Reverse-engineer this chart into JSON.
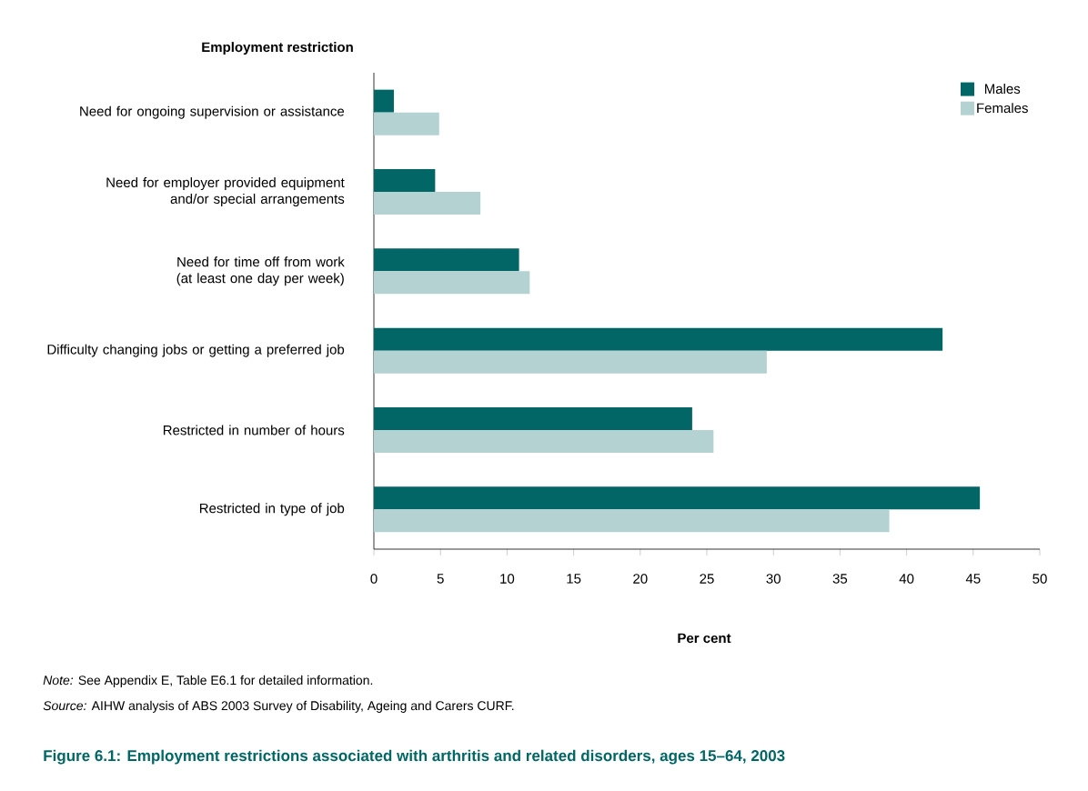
{
  "chart_data": {
    "type": "bar",
    "orientation": "horizontal",
    "title": "Figure 6.1: Employment restrictions associated with arthritis and related disorders, ages 15–64, 2003",
    "ylabel": "Employment restriction",
    "xlabel": "Per cent",
    "categories": [
      "Need for ongoing supervision or assistance",
      "Need for employer provided equipment and/or special arrangements",
      "Need for time off from work (at least one day per week)",
      "Difficulty changing jobs or getting a preferred job",
      "Restricted in number of hours",
      "Restricted in type of job"
    ],
    "series": [
      {
        "name": "Males",
        "color": "#026666",
        "values": [
          1.5,
          4.6,
          10.9,
          42.7,
          23.9,
          45.5
        ]
      },
      {
        "name": "Females",
        "color": "#b4d2d2",
        "values": [
          4.9,
          8.0,
          11.7,
          29.5,
          25.5,
          38.7
        ]
      }
    ],
    "xlim": [
      0,
      50
    ],
    "xticks": [
      0,
      5,
      10,
      15,
      20,
      25,
      30,
      35,
      40,
      45,
      50
    ],
    "legend": "top right",
    "grid": false,
    "annotations": [
      "*Note:* See Appendix E, Table E6.1 for detailed information.",
      "*Source:* AIHW analysis of ABS 2003 Survey of Disability, Ageing and Carers CURF."
    ]
  }
}
